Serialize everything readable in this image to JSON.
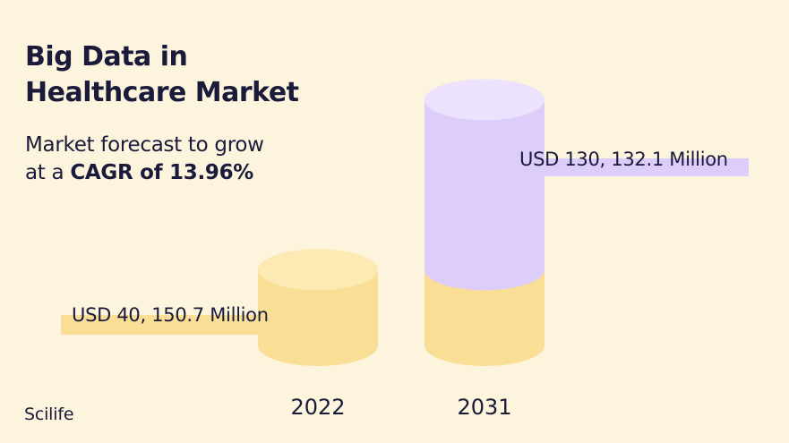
{
  "title": "Big Data in Healthcare Market",
  "subtitle": {
    "line1": "Market forecast to grow",
    "line2_prefix": "at a ",
    "line2_bold": "CAGR of 13.96%"
  },
  "logo_text": "Scilife",
  "colors": {
    "background": "#fdf4dd",
    "base_side": "#f9df96",
    "base_top": "#fce9b3",
    "growth_side": "#dccdfb",
    "growth_top": "#ece2fd",
    "text": "#1a1a3a"
  },
  "chart_data": {
    "type": "bar",
    "categories": [
      "2022",
      "2031"
    ],
    "values": [
      40150.7,
      130132.1
    ],
    "value_labels": [
      "USD 40, 150.7 Million",
      "USD 130, 132.1 Million"
    ],
    "unit": "USD Million"
  }
}
